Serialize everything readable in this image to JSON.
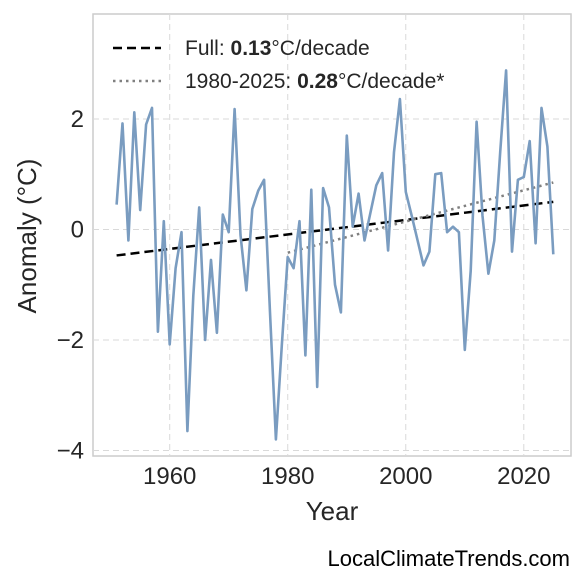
{
  "chart_data": {
    "type": "line",
    "title": "",
    "xlabel": "Year",
    "ylabel": "Anomaly (°C)",
    "xlim": [
      1947,
      2028
    ],
    "ylim": [
      -4.1,
      3.9
    ],
    "xticks": [
      1960,
      1980,
      2000,
      2020
    ],
    "yticks": [
      -4,
      -2,
      0,
      2
    ],
    "ytick_labels": [
      "−4",
      "−2",
      "0",
      "2"
    ],
    "grid": true,
    "legend_position": "top-left",
    "series": [
      {
        "color": "#7a9cc0",
        "x": [
          1951,
          1952,
          1953,
          1954,
          1955,
          1956,
          1957,
          1958,
          1959,
          1960,
          1961,
          1962,
          1963,
          1964,
          1965,
          1966,
          1967,
          1968,
          1969,
          1970,
          1971,
          1972,
          1973,
          1974,
          1975,
          1976,
          1977,
          1978,
          1979,
          1980,
          1981,
          1982,
          1983,
          1984,
          1985,
          1986,
          1987,
          1988,
          1989,
          1990,
          1991,
          1992,
          1993,
          1994,
          1995,
          1996,
          1997,
          1998,
          1999,
          2000,
          2001,
          2002,
          2003,
          2004,
          2005,
          2006,
          2007,
          2008,
          2009,
          2010,
          2011,
          2012,
          2013,
          2014,
          2015,
          2016,
          2017,
          2018,
          2019,
          2020,
          2021,
          2022,
          2023,
          2024,
          2025
        ],
        "y": [
          0.45,
          1.92,
          -0.2,
          2.12,
          0.35,
          1.9,
          2.2,
          -1.85,
          0.15,
          -2.08,
          -0.7,
          -0.05,
          -3.65,
          -1.2,
          0.4,
          -2.0,
          -0.55,
          -1.87,
          0.27,
          -0.05,
          2.18,
          -0.1,
          -1.1,
          0.37,
          0.7,
          0.9,
          -1.5,
          -3.8,
          -2.1,
          -0.5,
          -0.7,
          0.15,
          -2.28,
          0.72,
          -2.85,
          0.75,
          0.4,
          -1.0,
          -1.5,
          1.7,
          0.05,
          0.65,
          -0.2,
          0.3,
          0.8,
          1.02,
          -0.38,
          1.4,
          2.36,
          0.68,
          0.25,
          -0.2,
          -0.65,
          -0.4,
          1.0,
          1.02,
          -0.05,
          0.05,
          -0.05,
          -2.18,
          -0.75,
          1.95,
          0.25,
          -0.8,
          -0.2,
          1.4,
          2.88,
          -0.4,
          0.9,
          0.95,
          1.6,
          -0.25,
          2.2,
          1.5,
          -0.45
        ]
      }
    ],
    "trends": [
      {
        "name_prefix": "Full: ",
        "name_value": "0.13",
        "name_suffix": "°C/decade",
        "style": "dashed",
        "color": "#000000",
        "x": [
          1951,
          2025
        ],
        "y": [
          -0.47,
          0.5
        ]
      },
      {
        "name_prefix": "1980-2025: ",
        "name_value": "0.28",
        "name_suffix": "°C/decade*",
        "style": "dotted",
        "color": "#808080",
        "x": [
          1980,
          2025
        ],
        "y": [
          -0.42,
          0.85
        ]
      }
    ]
  },
  "watermark": "LocalClimateTrends.com"
}
